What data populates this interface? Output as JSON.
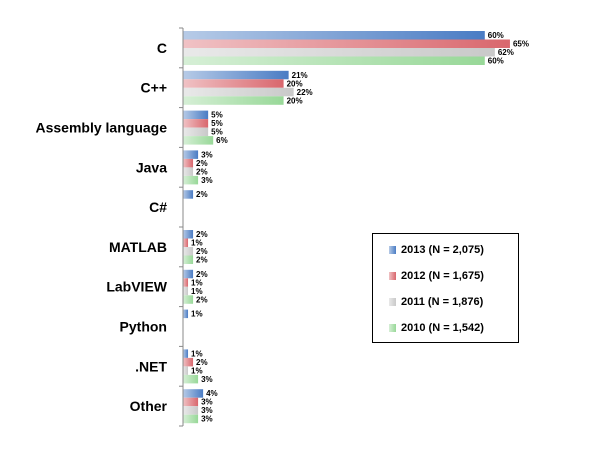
{
  "chart_data": {
    "type": "bar",
    "orientation": "horizontal",
    "categories": [
      "C",
      "C++",
      "Assembly language",
      "Java",
      "C#",
      "MATLAB",
      "LabVIEW",
      "Python",
      ".NET",
      "Other"
    ],
    "series": [
      {
        "name": "2013 (N = 2,075)",
        "values": [
          60,
          21,
          5,
          3,
          2,
          2,
          2,
          1,
          1,
          4
        ],
        "labels": [
          "60%",
          "21%",
          "5%",
          "3%",
          "2%",
          "2%",
          "2%",
          "1%",
          "1%",
          "4%"
        ]
      },
      {
        "name": "2012 (N = 1,675)",
        "values": [
          65,
          20,
          5,
          2,
          null,
          1,
          1,
          null,
          2,
          3
        ],
        "labels": [
          "65%",
          "20%",
          "5%",
          "2%",
          "",
          "1%",
          "1%",
          "",
          "2%",
          "3%"
        ]
      },
      {
        "name": "2011 (N = 1,876)",
        "values": [
          62,
          22,
          5,
          2,
          null,
          2,
          1,
          null,
          1,
          3
        ],
        "labels": [
          "62%",
          "22%",
          "5%",
          "2%",
          "",
          "2%",
          "1%",
          "",
          "1%",
          "3%"
        ]
      },
      {
        "name": "2010 (N = 1,542)",
        "values": [
          60,
          20,
          6,
          3,
          null,
          2,
          2,
          null,
          3,
          3
        ],
        "labels": [
          "60%",
          "20%",
          "6%",
          "3%",
          "",
          "2%",
          "2%",
          "",
          "3%",
          "3%"
        ]
      }
    ],
    "xlim": [
      0,
      67
    ],
    "grid": false,
    "legend_position": "right",
    "colors": [
      "#4a7cc4",
      "#d9676d",
      "#c9c9c9",
      "#98d898"
    ]
  }
}
